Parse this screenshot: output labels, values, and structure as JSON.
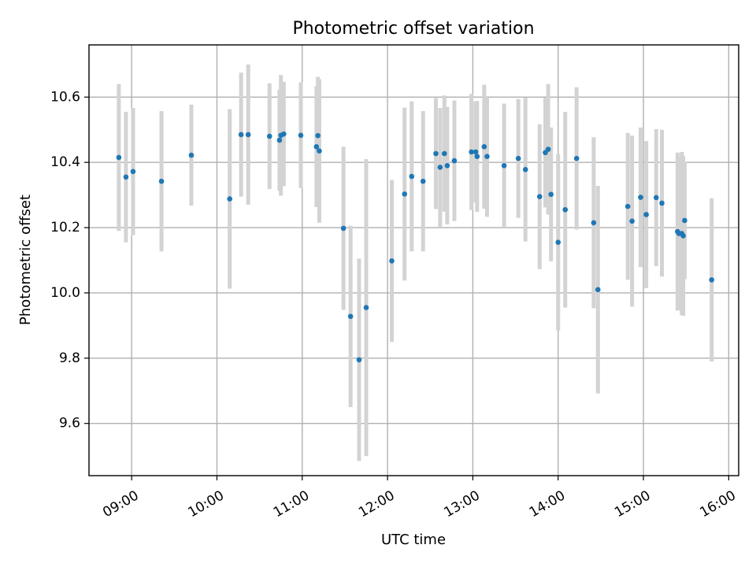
{
  "chart_data": {
    "type": "scatter",
    "title": "Photometric offset variation",
    "xlabel": "UTC time",
    "ylabel": "Photometric offset",
    "x_unit": "hours UTC",
    "xlim": [
      "08:30",
      "16:07"
    ],
    "ylim": [
      9.44,
      10.76
    ],
    "grid": true,
    "x_tick_values": [
      "09:00",
      "10:00",
      "11:00",
      "12:00",
      "13:00",
      "14:00",
      "15:00",
      "16:00"
    ],
    "y_tick_values": [
      9.6,
      9.8,
      10.0,
      10.2,
      10.4,
      10.6
    ],
    "colors": {
      "marker": "#1f77b4",
      "errorbar": "#d3d3d3",
      "grid": "#b0b0b0"
    },
    "series": [
      {
        "x": [
          "08:51",
          "08:56",
          "09:01",
          "09:21",
          "09:42",
          "10:09",
          "10:17",
          "10:22",
          "10:37",
          "10:44",
          "10:45",
          "10:47",
          "10:59",
          "11:10",
          "11:11",
          "11:12",
          "11:29",
          "11:34",
          "11:40",
          "11:45",
          "12:03",
          "12:12",
          "12:17",
          "12:25",
          "12:34",
          "12:37",
          "12:40",
          "12:42",
          "12:47",
          "12:59",
          "13:02",
          "13:03",
          "13:08",
          "13:10",
          "13:22",
          "13:32",
          "13:37",
          "13:47",
          "13:51",
          "13:53",
          "13:55",
          "14:00",
          "14:05",
          "14:13",
          "14:25",
          "14:28",
          "14:49",
          "14:52",
          "14:58",
          "15:02",
          "15:09",
          "15:13",
          "15:24",
          "15:25",
          "15:27",
          "15:28",
          "15:29",
          "15:48"
        ],
        "y": [
          10.415,
          10.355,
          10.372,
          10.342,
          10.422,
          10.288,
          10.485,
          10.485,
          10.48,
          10.468,
          10.483,
          10.487,
          10.483,
          10.448,
          10.482,
          10.435,
          10.198,
          9.928,
          9.795,
          9.955,
          10.098,
          10.303,
          10.357,
          10.342,
          10.427,
          10.385,
          10.427,
          10.39,
          10.405,
          10.432,
          10.432,
          10.418,
          10.448,
          10.418,
          10.39,
          10.412,
          10.378,
          10.295,
          10.43,
          10.44,
          10.302,
          10.155,
          10.255,
          10.412,
          10.215,
          10.01,
          10.265,
          10.22,
          10.293,
          10.24,
          10.292,
          10.275,
          10.188,
          10.182,
          10.182,
          10.175,
          10.222,
          10.04
        ],
        "yerr": [
          0.225,
          0.2,
          0.195,
          0.215,
          0.155,
          0.275,
          0.19,
          0.215,
          0.162,
          0.155,
          0.185,
          0.16,
          0.162,
          0.185,
          0.18,
          0.22,
          0.25,
          0.278,
          0.31,
          0.455,
          0.248,
          0.265,
          0.23,
          0.215,
          0.17,
          0.182,
          0.178,
          0.18,
          0.185,
          0.178,
          0.155,
          0.17,
          0.19,
          0.185,
          0.19,
          0.182,
          0.22,
          0.222,
          0.168,
          0.2,
          0.205,
          0.27,
          0.3,
          0.218,
          0.262,
          0.318,
          0.225,
          0.262,
          0.214,
          0.225,
          0.21,
          0.225,
          0.242,
          0.235,
          0.25,
          0.245,
          0.18,
          0.25
        ]
      }
    ]
  }
}
